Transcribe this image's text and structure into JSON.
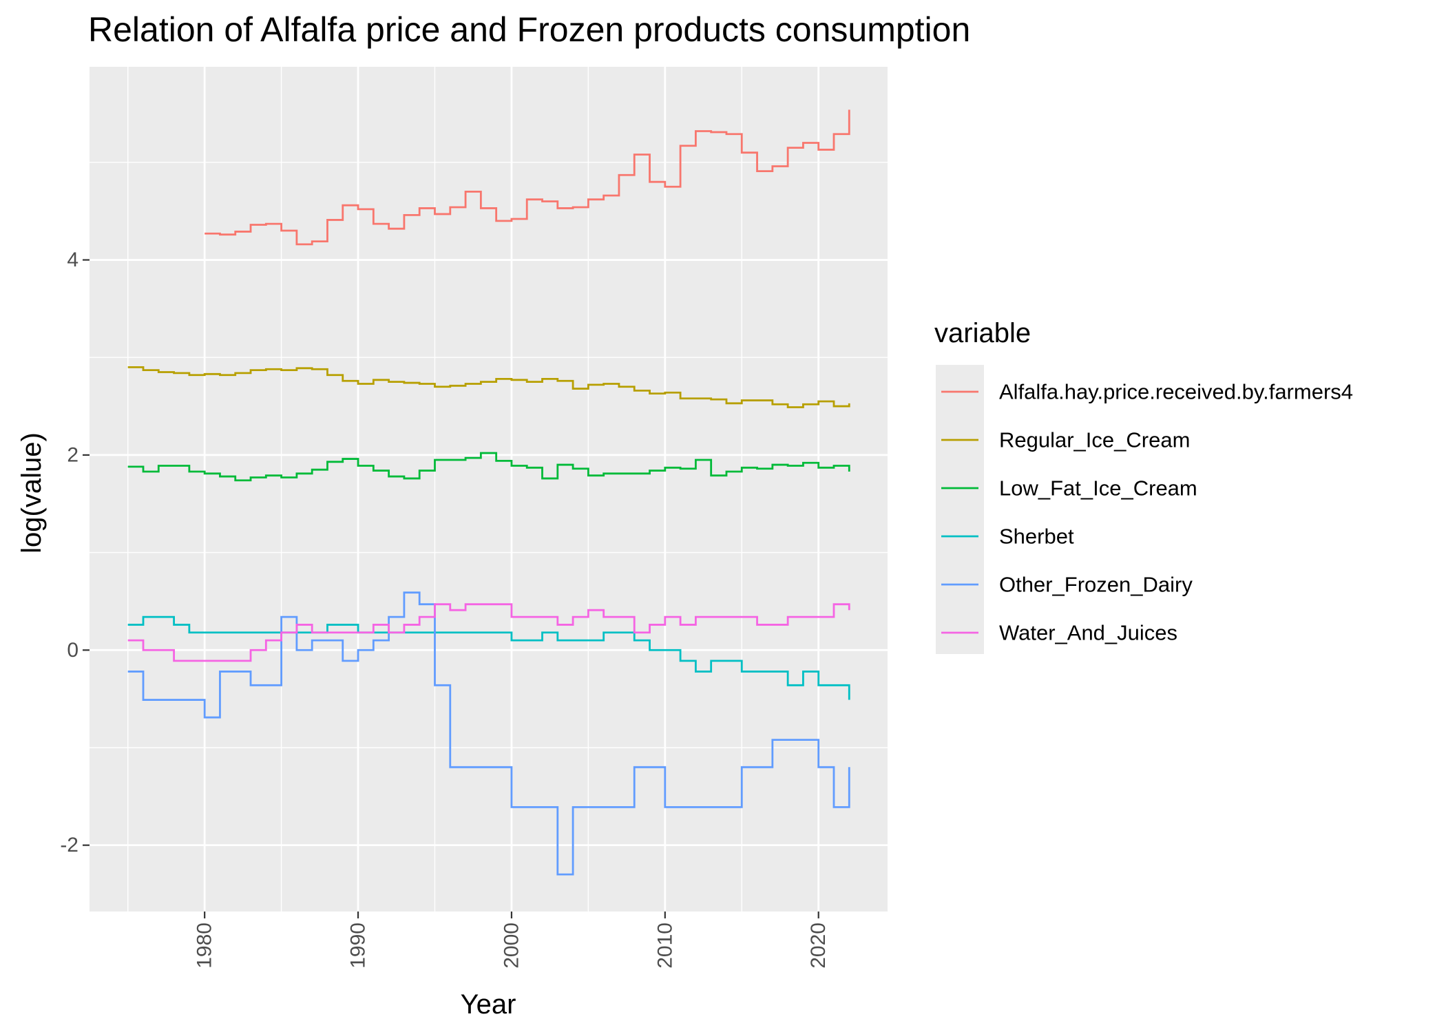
{
  "chart_data": {
    "type": "line",
    "step": true,
    "title": "Relation of Alfalfa price and Frozen products consumption",
    "xlabel": "Year",
    "ylabel": "log(value)",
    "xlim": [
      1972.5,
      2024.5
    ],
    "ylim": [
      -2.68,
      5.98
    ],
    "x_ticks": [
      1980,
      1990,
      2000,
      2010,
      2020
    ],
    "y_ticks": [
      -2,
      0,
      2,
      4
    ],
    "legend": {
      "title": "variable",
      "position": "right"
    },
    "background": "#ebebeb",
    "grid": true,
    "series": [
      {
        "name": "Alfalfa.hay.price.received.by.farmers4",
        "color": "#f8766d",
        "x": [
          1980,
          1981,
          1982,
          1983,
          1984,
          1985,
          1986,
          1987,
          1988,
          1989,
          1990,
          1991,
          1992,
          1993,
          1994,
          1995,
          1996,
          1997,
          1998,
          1999,
          2000,
          2001,
          2002,
          2003,
          2004,
          2005,
          2006,
          2007,
          2008,
          2009,
          2010,
          2011,
          2012,
          2013,
          2014,
          2015,
          2016,
          2017,
          2018,
          2019,
          2020,
          2021,
          2022
        ],
        "values": [
          4.27,
          4.26,
          4.29,
          4.36,
          4.37,
          4.3,
          4.16,
          4.19,
          4.41,
          4.56,
          4.52,
          4.37,
          4.32,
          4.46,
          4.53,
          4.47,
          4.54,
          4.7,
          4.53,
          4.4,
          4.42,
          4.62,
          4.6,
          4.53,
          4.54,
          4.62,
          4.66,
          4.87,
          5.08,
          4.8,
          4.75,
          5.17,
          5.32,
          5.31,
          5.29,
          5.1,
          4.91,
          4.96,
          5.15,
          5.2,
          5.13,
          5.29,
          5.54
        ]
      },
      {
        "name": "Regular_Ice_Cream",
        "color": "#b79f00",
        "x": [
          1975,
          1976,
          1977,
          1978,
          1979,
          1980,
          1981,
          1982,
          1983,
          1984,
          1985,
          1986,
          1987,
          1988,
          1989,
          1990,
          1991,
          1992,
          1993,
          1994,
          1995,
          1996,
          1997,
          1998,
          1999,
          2000,
          2001,
          2002,
          2003,
          2004,
          2005,
          2006,
          2007,
          2008,
          2009,
          2010,
          2011,
          2012,
          2013,
          2014,
          2015,
          2016,
          2017,
          2018,
          2019,
          2020,
          2021,
          2022
        ],
        "values": [
          2.9,
          2.87,
          2.85,
          2.84,
          2.82,
          2.83,
          2.82,
          2.84,
          2.87,
          2.88,
          2.87,
          2.89,
          2.88,
          2.82,
          2.76,
          2.73,
          2.77,
          2.75,
          2.74,
          2.73,
          2.7,
          2.71,
          2.73,
          2.75,
          2.78,
          2.77,
          2.75,
          2.78,
          2.76,
          2.68,
          2.72,
          2.73,
          2.7,
          2.66,
          2.63,
          2.64,
          2.58,
          2.58,
          2.57,
          2.53,
          2.56,
          2.56,
          2.52,
          2.49,
          2.52,
          2.55,
          2.5,
          2.53
        ]
      },
      {
        "name": "Low_Fat_Ice_Cream",
        "color": "#00ba38",
        "x": [
          1975,
          1976,
          1977,
          1978,
          1979,
          1980,
          1981,
          1982,
          1983,
          1984,
          1985,
          1986,
          1987,
          1988,
          1989,
          1990,
          1991,
          1992,
          1993,
          1994,
          1995,
          1996,
          1997,
          1998,
          1999,
          2000,
          2001,
          2002,
          2003,
          2004,
          2005,
          2006,
          2007,
          2008,
          2009,
          2010,
          2011,
          2012,
          2013,
          2014,
          2015,
          2016,
          2017,
          2018,
          2019,
          2020,
          2021,
          2022
        ],
        "values": [
          1.88,
          1.83,
          1.89,
          1.89,
          1.83,
          1.81,
          1.78,
          1.74,
          1.77,
          1.79,
          1.77,
          1.81,
          1.85,
          1.93,
          1.96,
          1.89,
          1.84,
          1.78,
          1.76,
          1.84,
          1.95,
          1.95,
          1.97,
          2.02,
          1.94,
          1.89,
          1.87,
          1.76,
          1.9,
          1.86,
          1.79,
          1.81,
          1.81,
          1.81,
          1.84,
          1.87,
          1.86,
          1.95,
          1.79,
          1.83,
          1.87,
          1.86,
          1.9,
          1.89,
          1.92,
          1.87,
          1.89,
          1.83
        ]
      },
      {
        "name": "Sherbet",
        "color": "#00bfc4",
        "x": [
          1975,
          1976,
          1977,
          1978,
          1979,
          1980,
          1981,
          1982,
          1983,
          1984,
          1985,
          1986,
          1987,
          1988,
          1989,
          1990,
          1991,
          1992,
          1993,
          1994,
          1995,
          1996,
          1997,
          1998,
          1999,
          2000,
          2001,
          2002,
          2003,
          2004,
          2005,
          2006,
          2007,
          2008,
          2009,
          2010,
          2011,
          2012,
          2013,
          2014,
          2015,
          2016,
          2017,
          2018,
          2019,
          2020,
          2021,
          2022
        ],
        "values": [
          0.26,
          0.34,
          0.34,
          0.26,
          0.18,
          0.18,
          0.18,
          0.18,
          0.18,
          0.18,
          0.18,
          0.18,
          0.18,
          0.26,
          0.26,
          0.18,
          0.18,
          0.18,
          0.18,
          0.18,
          0.18,
          0.18,
          0.18,
          0.18,
          0.18,
          0.1,
          0.1,
          0.18,
          0.1,
          0.1,
          0.1,
          0.18,
          0.18,
          0.1,
          0.0,
          0.0,
          -0.11,
          -0.22,
          -0.11,
          -0.11,
          -0.22,
          -0.22,
          -0.22,
          -0.36,
          -0.22,
          -0.36,
          -0.36,
          -0.51
        ]
      },
      {
        "name": "Other_Frozen_Dairy",
        "color": "#619cff",
        "x": [
          1975,
          1976,
          1977,
          1978,
          1979,
          1980,
          1981,
          1982,
          1983,
          1984,
          1985,
          1986,
          1987,
          1988,
          1989,
          1990,
          1991,
          1992,
          1993,
          1994,
          1995,
          1996,
          1997,
          1998,
          1999,
          2000,
          2001,
          2002,
          2003,
          2004,
          2005,
          2006,
          2007,
          2008,
          2009,
          2010,
          2011,
          2012,
          2013,
          2014,
          2015,
          2016,
          2017,
          2018,
          2019,
          2020,
          2021,
          2022
        ],
        "values": [
          -0.22,
          -0.51,
          -0.51,
          -0.51,
          -0.51,
          -0.69,
          -0.22,
          -0.22,
          -0.36,
          -0.36,
          0.34,
          0.0,
          0.1,
          0.1,
          -0.11,
          0.0,
          0.1,
          0.34,
          0.59,
          0.47,
          -0.36,
          -1.2,
          -1.2,
          -1.2,
          -1.2,
          -1.61,
          -1.61,
          -1.61,
          -2.3,
          -1.61,
          -1.61,
          -1.61,
          -1.61,
          -1.2,
          -1.2,
          -1.61,
          -1.61,
          -1.61,
          -1.61,
          -1.61,
          -1.2,
          -1.2,
          -0.92,
          -0.92,
          -0.92,
          -1.2,
          -1.61,
          -1.2
        ]
      },
      {
        "name": "Water_And_Juices",
        "color": "#f564e3",
        "x": [
          1975,
          1976,
          1977,
          1978,
          1979,
          1980,
          1981,
          1982,
          1983,
          1984,
          1985,
          1986,
          1987,
          1988,
          1989,
          1990,
          1991,
          1992,
          1993,
          1994,
          1995,
          1996,
          1997,
          1998,
          1999,
          2000,
          2001,
          2002,
          2003,
          2004,
          2005,
          2006,
          2007,
          2008,
          2009,
          2010,
          2011,
          2012,
          2013,
          2014,
          2015,
          2016,
          2017,
          2018,
          2019,
          2020,
          2021,
          2022
        ],
        "values": [
          0.1,
          0.0,
          0.0,
          -0.11,
          -0.11,
          -0.11,
          -0.11,
          -0.11,
          0.0,
          0.1,
          0.18,
          0.26,
          0.18,
          0.18,
          0.18,
          0.18,
          0.26,
          0.18,
          0.26,
          0.34,
          0.47,
          0.41,
          0.47,
          0.47,
          0.47,
          0.34,
          0.34,
          0.34,
          0.26,
          0.34,
          0.41,
          0.34,
          0.34,
          0.18,
          0.26,
          0.34,
          0.26,
          0.34,
          0.34,
          0.34,
          0.34,
          0.26,
          0.26,
          0.34,
          0.34,
          0.34,
          0.47,
          0.41
        ]
      }
    ]
  }
}
